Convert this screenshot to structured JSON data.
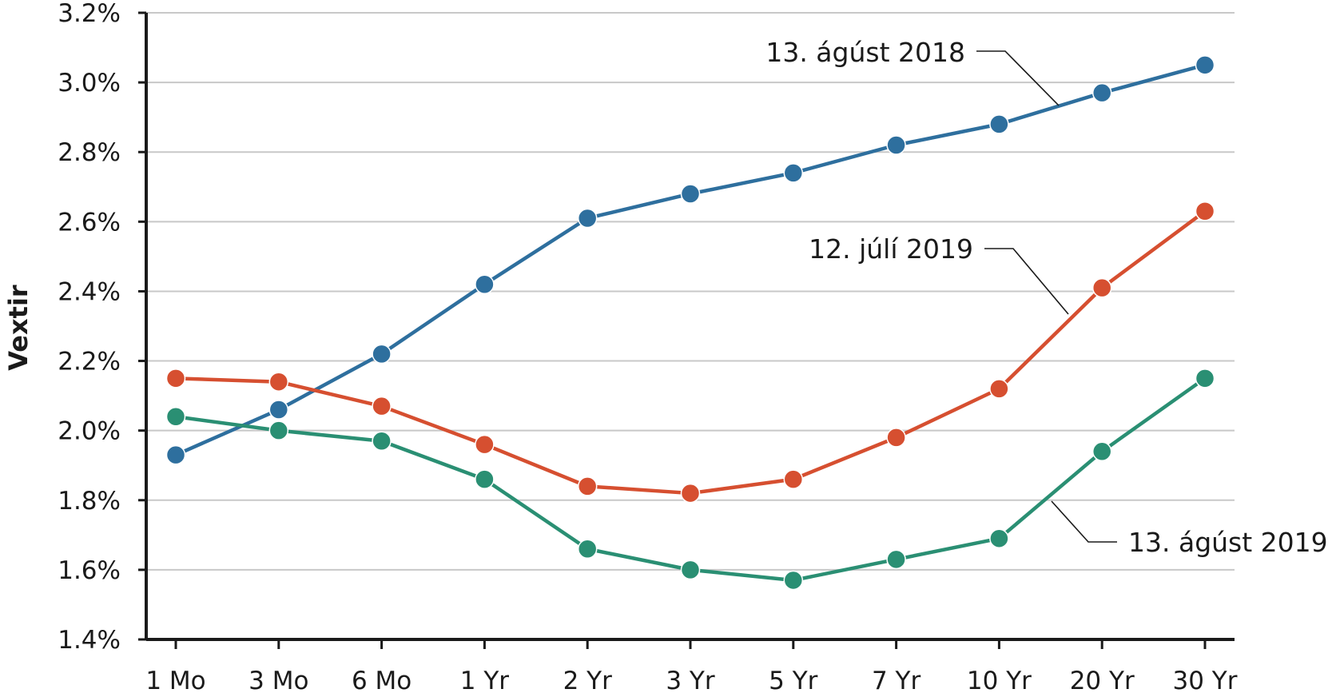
{
  "chart_data": {
    "type": "line",
    "ylabel": "Vextir",
    "xlabel": "",
    "title": "",
    "categories": [
      "1 Mo",
      "3 Mo",
      "6 Mo",
      "1 Yr",
      "2 Yr",
      "3 Yr",
      "5 Yr",
      "7 Yr",
      "10 Yr",
      "20 Yr",
      "30 Yr"
    ],
    "ylim": [
      1.4,
      3.2
    ],
    "yticks": [
      1.4,
      1.6,
      1.8,
      2.0,
      2.2,
      2.4,
      2.6,
      2.8,
      3.0,
      3.2
    ],
    "ytick_labels": [
      "1.4%",
      "1.6%",
      "1.8%",
      "2.0%",
      "2.2%",
      "2.4%",
      "2.6%",
      "2.8%",
      "3.0%",
      "3.2%"
    ],
    "grid": true,
    "legend": "inline labels",
    "series": [
      {
        "name": "13. ágúst 2018",
        "color": "#2e6f9e",
        "values": [
          1.93,
          2.06,
          2.22,
          2.42,
          2.61,
          2.68,
          2.74,
          2.82,
          2.88,
          2.97,
          3.05
        ]
      },
      {
        "name": "12. júlí 2019",
        "color": "#d64f30",
        "values": [
          2.15,
          2.14,
          2.07,
          1.96,
          1.84,
          1.82,
          1.86,
          1.98,
          2.12,
          2.41,
          2.63
        ]
      },
      {
        "name": "13. ágúst 2019",
        "color": "#2a8f73",
        "values": [
          2.04,
          2.0,
          1.97,
          1.86,
          1.66,
          1.6,
          1.57,
          1.63,
          1.69,
          1.94,
          2.15
        ]
      }
    ]
  }
}
